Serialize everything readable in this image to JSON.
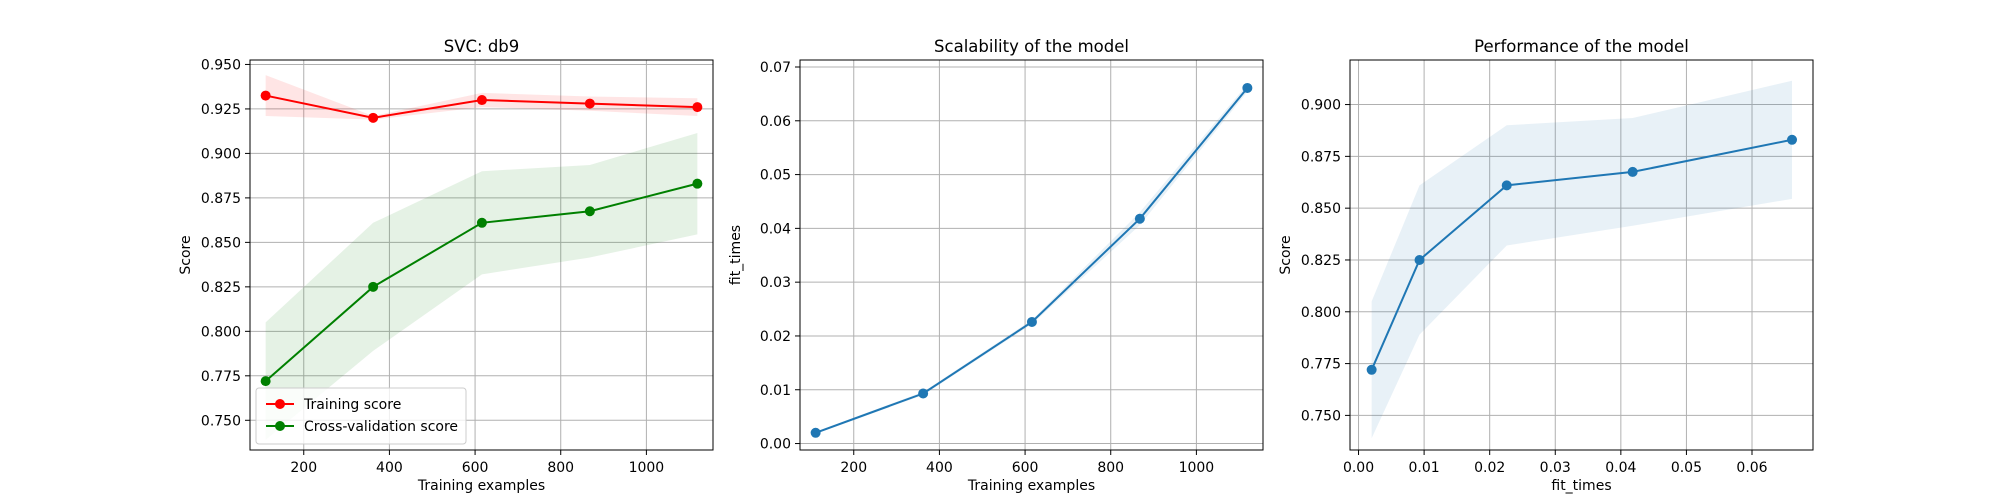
{
  "chart_data": [
    {
      "type": "line",
      "title": "SVC: db9",
      "xlabel": "Training examples",
      "ylabel": "Score",
      "xlim": [
        74.5,
        1155.5
      ],
      "ylim": [
        0.7333,
        0.9525
      ],
      "xticks": [
        200,
        400,
        600,
        800,
        1000
      ],
      "xtick_labels": [
        "200",
        "400",
        "600",
        "800",
        "1000"
      ],
      "yticks": [
        0.75,
        0.775,
        0.8,
        0.825,
        0.85,
        0.875,
        0.9,
        0.925,
        0.95
      ],
      "ytick_labels": [
        "0.750",
        "0.775",
        "0.800",
        "0.825",
        "0.850",
        "0.875",
        "0.900",
        "0.925",
        "0.950"
      ],
      "grid": true,
      "legend": "lower-left",
      "x": [
        111,
        362,
        616,
        868,
        1119
      ],
      "series": [
        {
          "name": "Training score",
          "color": "#ff0000",
          "band_color": "#ff0000",
          "values": [
            0.9325,
            0.92,
            0.93,
            0.928,
            0.926
          ],
          "band_upper": [
            0.944,
            0.921,
            0.934,
            0.932,
            0.931
          ],
          "band_lower": [
            0.921,
            0.919,
            0.926,
            0.924,
            0.921
          ]
        },
        {
          "name": "Cross-validation score",
          "color": "#008000",
          "band_color": "#008000",
          "values": [
            0.772,
            0.825,
            0.861,
            0.8675,
            0.883
          ],
          "band_upper": [
            0.805,
            0.861,
            0.89,
            0.8935,
            0.9115
          ],
          "band_lower": [
            0.739,
            0.789,
            0.832,
            0.8415,
            0.8545
          ]
        }
      ]
    },
    {
      "type": "line",
      "title": "Scalability of the model",
      "xlabel": "Training examples",
      "ylabel": "fit_times",
      "xlim": [
        74.5,
        1155.5
      ],
      "ylim": [
        -0.0012,
        0.0713
      ],
      "xticks": [
        200,
        400,
        600,
        800,
        1000
      ],
      "xtick_labels": [
        "200",
        "400",
        "600",
        "800",
        "1000"
      ],
      "yticks": [
        0.0,
        0.01,
        0.02,
        0.03,
        0.04,
        0.05,
        0.06,
        0.07
      ],
      "ytick_labels": [
        "0.00",
        "0.01",
        "0.02",
        "0.03",
        "0.04",
        "0.05",
        "0.06",
        "0.07"
      ],
      "grid": true,
      "x": [
        111,
        362,
        616,
        868,
        1119
      ],
      "series": [
        {
          "color": "#1f77b4",
          "band_color": "#1f77b4",
          "values": [
            0.002,
            0.0093,
            0.0226,
            0.0418,
            0.0661
          ],
          "band_upper": [
            0.0022,
            0.0096,
            0.023,
            0.043,
            0.0668
          ],
          "band_lower": [
            0.0018,
            0.009,
            0.0222,
            0.0406,
            0.0654
          ]
        }
      ]
    },
    {
      "type": "line",
      "title": "Performance of the model",
      "xlabel": "fit_times",
      "ylabel": "Score",
      "xlim": [
        -0.0013,
        0.0693
      ],
      "ylim": [
        0.7333,
        0.9215
      ],
      "xticks": [
        0.0,
        0.01,
        0.02,
        0.03,
        0.04,
        0.05,
        0.06
      ],
      "xtick_labels": [
        "0.00",
        "0.01",
        "0.02",
        "0.03",
        "0.04",
        "0.05",
        "0.06"
      ],
      "yticks": [
        0.75,
        0.775,
        0.8,
        0.825,
        0.85,
        0.875,
        0.9
      ],
      "ytick_labels": [
        "0.750",
        "0.775",
        "0.800",
        "0.825",
        "0.850",
        "0.875",
        "0.900"
      ],
      "grid": true,
      "x": [
        0.002,
        0.0093,
        0.0226,
        0.0418,
        0.0661
      ],
      "series": [
        {
          "color": "#1f77b4",
          "band_color": "#1f77b4",
          "values": [
            0.772,
            0.825,
            0.861,
            0.8675,
            0.883
          ],
          "band_upper": [
            0.805,
            0.861,
            0.89,
            0.8935,
            0.9115
          ],
          "band_lower": [
            0.739,
            0.789,
            0.832,
            0.8415,
            0.8545
          ]
        }
      ]
    }
  ]
}
